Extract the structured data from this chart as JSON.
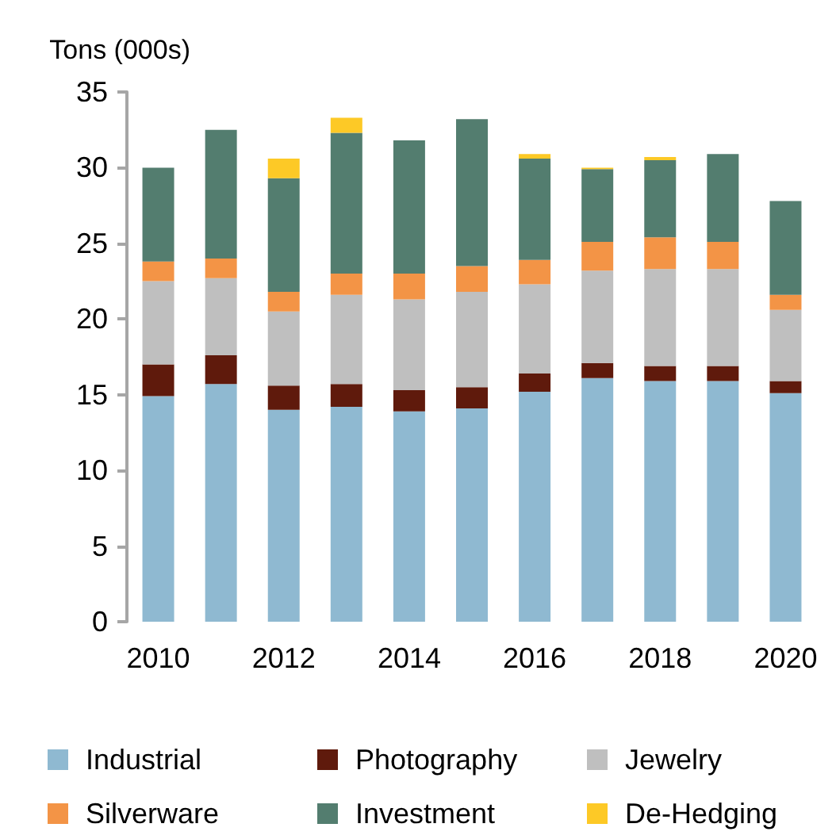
{
  "chart_data": {
    "type": "bar",
    "ylabel": "Tons (000s)",
    "stacked": true,
    "legend": "bottom",
    "grid": false,
    "categories": [
      "2010",
      null,
      "2012",
      null,
      "2014",
      null,
      "2016",
      null,
      "2018",
      null,
      "2020"
    ],
    "ylim": [
      0,
      35
    ],
    "yticks": [
      0,
      5,
      10,
      15,
      20,
      25,
      30,
      35
    ],
    "series": [
      {
        "name": "Industrial",
        "color": "#8fb9d1",
        "values": [
          14.9,
          15.7,
          14.0,
          14.2,
          13.9,
          14.1,
          15.2,
          16.1,
          15.9,
          15.9,
          15.1
        ]
      },
      {
        "name": "Photography",
        "color": "#5f1a0c",
        "values": [
          2.1,
          1.9,
          1.6,
          1.5,
          1.4,
          1.4,
          1.2,
          1.0,
          1.0,
          1.0,
          0.8
        ]
      },
      {
        "name": "Jewelry",
        "color": "#bfbfbf",
        "values": [
          5.5,
          5.1,
          4.9,
          5.9,
          6.0,
          6.3,
          5.9,
          6.1,
          6.4,
          6.4,
          4.7
        ]
      },
      {
        "name": "Silverware",
        "color": "#f39446",
        "values": [
          1.3,
          1.3,
          1.3,
          1.4,
          1.7,
          1.7,
          1.6,
          1.9,
          2.1,
          1.8,
          1.0
        ]
      },
      {
        "name": "Investment",
        "color": "#537d6f",
        "values": [
          6.2,
          8.5,
          7.5,
          9.3,
          8.8,
          9.7,
          6.7,
          4.8,
          5.1,
          5.8,
          6.2
        ]
      },
      {
        "name": "De-Hedging",
        "color": "#fdc926",
        "values": [
          null,
          null,
          1.3,
          1.0,
          null,
          null,
          0.3,
          0.1,
          0.2,
          null,
          null
        ]
      }
    ]
  }
}
